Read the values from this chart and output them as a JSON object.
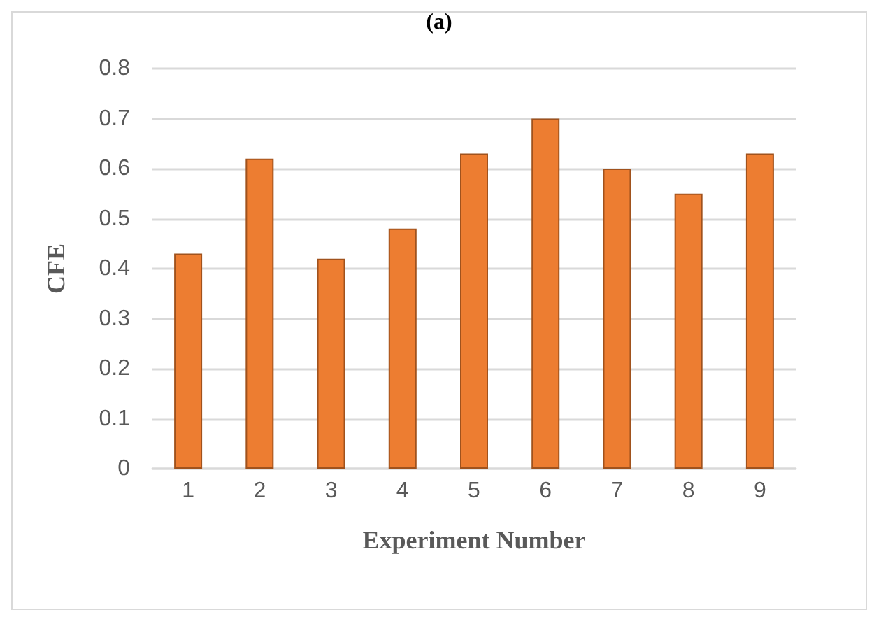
{
  "chart_data": {
    "type": "bar",
    "title": "(a)",
    "xlabel": "Experiment Number",
    "ylabel": "CFE",
    "categories": [
      "1",
      "2",
      "3",
      "4",
      "5",
      "6",
      "7",
      "8",
      "9"
    ],
    "values": [
      0.43,
      0.62,
      0.42,
      0.48,
      0.63,
      0.7,
      0.6,
      0.55,
      0.63
    ],
    "color": "#ed7d31",
    "ylim": [
      0,
      0.8
    ],
    "yticks": [
      0,
      0.1,
      0.2,
      0.3,
      0.4,
      0.5,
      0.6,
      0.7,
      0.8
    ],
    "grid": "y"
  }
}
